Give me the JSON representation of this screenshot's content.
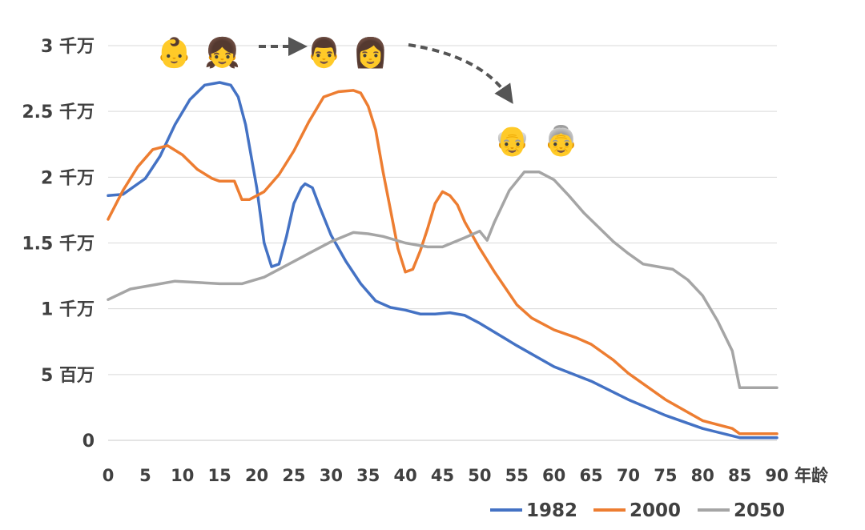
{
  "chart_data": {
    "type": "line",
    "xlabel": "年龄",
    "ylabel": "",
    "xlim": [
      0,
      90
    ],
    "ylim": [
      0,
      30000000
    ],
    "y_ticks": [
      {
        "value": 0,
        "label": "0"
      },
      {
        "value": 5000000,
        "label": "5 百万"
      },
      {
        "value": 10000000,
        "label": "1 千万"
      },
      {
        "value": 15000000,
        "label": "1.5 千万"
      },
      {
        "value": 20000000,
        "label": "2 千万"
      },
      {
        "value": 25000000,
        "label": "2.5 千万"
      },
      {
        "value": 30000000,
        "label": "3 千万"
      }
    ],
    "x_ticks": [
      0,
      5,
      10,
      15,
      20,
      25,
      30,
      35,
      40,
      45,
      50,
      55,
      60,
      65,
      70,
      75,
      80,
      85,
      90
    ],
    "grid": "horizontal",
    "legend_position": "bottom-right",
    "series": [
      {
        "name": "1982",
        "color": "#4472c4",
        "points": [
          [
            0,
            18.6
          ],
          [
            2,
            18.7
          ],
          [
            5,
            19.9
          ],
          [
            7,
            21.6
          ],
          [
            9,
            24.0
          ],
          [
            11,
            25.9
          ],
          [
            13,
            27.0
          ],
          [
            15,
            27.2
          ],
          [
            16.5,
            27.0
          ],
          [
            17.5,
            26.1
          ],
          [
            18.5,
            24.0
          ],
          [
            20,
            19.2
          ],
          [
            21,
            15.0
          ],
          [
            22,
            13.2
          ],
          [
            23,
            13.4
          ],
          [
            24,
            15.5
          ],
          [
            25,
            18.0
          ],
          [
            26,
            19.2
          ],
          [
            26.5,
            19.5
          ],
          [
            27.5,
            19.2
          ],
          [
            28.5,
            17.7
          ],
          [
            30,
            15.6
          ],
          [
            32,
            13.6
          ],
          [
            34,
            11.9
          ],
          [
            36,
            10.6
          ],
          [
            38,
            10.1
          ],
          [
            40,
            9.9
          ],
          [
            42,
            9.6
          ],
          [
            44,
            9.6
          ],
          [
            46,
            9.7
          ],
          [
            48,
            9.5
          ],
          [
            50,
            8.9
          ],
          [
            55,
            7.2
          ],
          [
            60,
            5.6
          ],
          [
            65,
            4.5
          ],
          [
            70,
            3.1
          ],
          [
            75,
            1.9
          ],
          [
            80,
            0.9
          ],
          [
            85,
            0.2
          ],
          [
            90,
            0.2
          ]
        ]
      },
      {
        "name": "2000",
        "color": "#ed7d31",
        "points": [
          [
            0,
            16.8
          ],
          [
            2,
            19.0
          ],
          [
            4,
            20.8
          ],
          [
            6,
            22.1
          ],
          [
            8,
            22.4
          ],
          [
            10,
            21.7
          ],
          [
            12,
            20.6
          ],
          [
            14,
            19.9
          ],
          [
            15,
            19.7
          ],
          [
            17,
            19.7
          ],
          [
            18,
            18.3
          ],
          [
            19,
            18.3
          ],
          [
            21,
            18.9
          ],
          [
            23,
            20.2
          ],
          [
            25,
            22.0
          ],
          [
            27,
            24.2
          ],
          [
            29,
            26.1
          ],
          [
            31,
            26.5
          ],
          [
            33,
            26.6
          ],
          [
            34,
            26.4
          ],
          [
            35,
            25.4
          ],
          [
            36,
            23.6
          ],
          [
            37,
            20.4
          ],
          [
            38,
            17.5
          ],
          [
            39,
            14.6
          ],
          [
            40,
            12.8
          ],
          [
            41,
            13.0
          ],
          [
            42,
            14.4
          ],
          [
            43,
            16.1
          ],
          [
            44,
            18.0
          ],
          [
            45,
            18.9
          ],
          [
            46,
            18.6
          ],
          [
            47,
            17.9
          ],
          [
            48,
            16.6
          ],
          [
            50,
            14.6
          ],
          [
            52,
            12.8
          ],
          [
            55,
            10.3
          ],
          [
            57,
            9.3
          ],
          [
            60,
            8.4
          ],
          [
            63,
            7.8
          ],
          [
            65,
            7.3
          ],
          [
            68,
            6.1
          ],
          [
            70,
            5.1
          ],
          [
            75,
            3.1
          ],
          [
            80,
            1.5
          ],
          [
            84,
            0.9
          ],
          [
            85,
            0.5
          ],
          [
            90,
            0.5
          ]
        ]
      },
      {
        "name": "2050",
        "color": "#a5a5a5",
        "points": [
          [
            0,
            10.7
          ],
          [
            3,
            11.5
          ],
          [
            6,
            11.8
          ],
          [
            9,
            12.1
          ],
          [
            12,
            12.0
          ],
          [
            15,
            11.9
          ],
          [
            18,
            11.9
          ],
          [
            21,
            12.4
          ],
          [
            24,
            13.3
          ],
          [
            27,
            14.2
          ],
          [
            30,
            15.1
          ],
          [
            33,
            15.8
          ],
          [
            35,
            15.7
          ],
          [
            37,
            15.5
          ],
          [
            40,
            15.0
          ],
          [
            43,
            14.7
          ],
          [
            45,
            14.7
          ],
          [
            48,
            15.4
          ],
          [
            50,
            15.9
          ],
          [
            51,
            15.2
          ],
          [
            52,
            16.6
          ],
          [
            54,
            19.0
          ],
          [
            56,
            20.4
          ],
          [
            58,
            20.4
          ],
          [
            60,
            19.8
          ],
          [
            62,
            18.6
          ],
          [
            64,
            17.3
          ],
          [
            66,
            16.2
          ],
          [
            68,
            15.1
          ],
          [
            70,
            14.2
          ],
          [
            72,
            13.4
          ],
          [
            74,
            13.2
          ],
          [
            76,
            13.0
          ],
          [
            78,
            12.2
          ],
          [
            80,
            11.0
          ],
          [
            82,
            9.1
          ],
          [
            84,
            6.8
          ],
          [
            85,
            4.0
          ],
          [
            88,
            4.0
          ],
          [
            90,
            4.0
          ]
        ]
      }
    ],
    "annotations": {
      "young": [
        "👶",
        "👧"
      ],
      "adult": [
        "👨",
        "👩"
      ],
      "old": [
        "👴",
        "👵"
      ]
    }
  }
}
